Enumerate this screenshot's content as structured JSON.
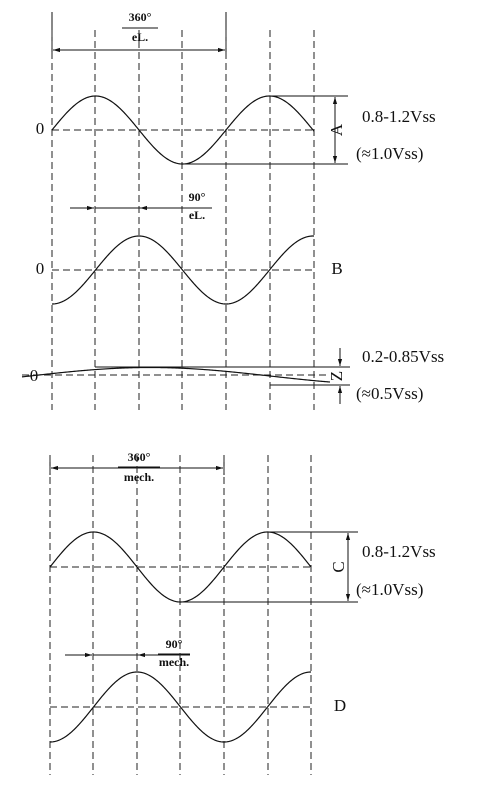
{
  "top": {
    "period": {
      "angle": "360°",
      "unit": "eL."
    },
    "quarter": {
      "angle": "90°",
      "unit": "eL."
    },
    "signal_a": {
      "zero": "0",
      "name": "A",
      "range": "0.8-1.2Vss",
      "typical": "(≈1.0Vss)"
    },
    "signal_b": {
      "zero": "0",
      "name": "B"
    },
    "signal_z": {
      "zero": "0",
      "name": "Z",
      "range": "0.2-0.85Vss",
      "typical": "(≈0.5Vss)"
    }
  },
  "bottom": {
    "period": {
      "angle": "360°",
      "unit": "mech."
    },
    "quarter": {
      "angle": "90°",
      "unit": "mech."
    },
    "signal_c": {
      "name": "C",
      "range": "0.8-1.2Vss",
      "typical": "(≈1.0Vss)"
    },
    "signal_d": {
      "name": "D"
    }
  }
}
